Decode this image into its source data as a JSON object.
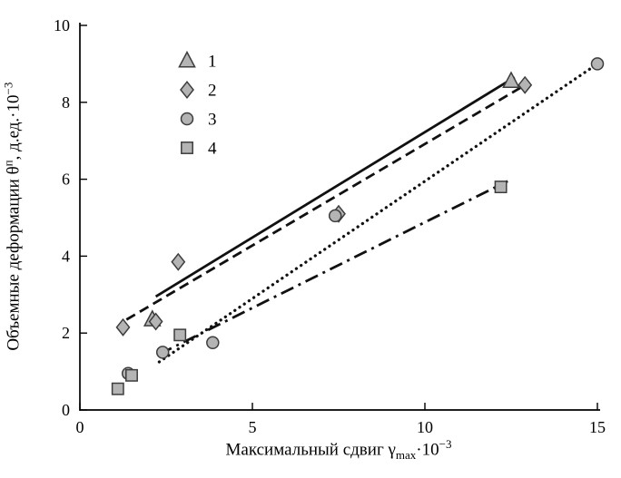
{
  "chart_data": {
    "type": "scatter",
    "title": "",
    "xlabel": {
      "pre": "Максимальный сдвиг γ",
      "sub": "max",
      "mid": "·10",
      "sup": "−3"
    },
    "ylabel": {
      "pre": "Объемные деформации θ",
      "sup1": "п",
      "mid": ", д.ед.·10",
      "sup2": "−3"
    },
    "xlim": [
      0,
      15
    ],
    "ylim": [
      0,
      10
    ],
    "xticks": [
      0,
      5,
      10,
      15
    ],
    "yticks": [
      0,
      2,
      4,
      6,
      8,
      10
    ],
    "grid": false,
    "legend_position": "upper-left-inside",
    "marker_fill": "#b4b4b4",
    "marker_stroke": "#3d3d3d",
    "line_color": "#111111",
    "legend": [
      {
        "label": "1",
        "marker": "triangle"
      },
      {
        "label": "2",
        "marker": "diamond"
      },
      {
        "label": "3",
        "marker": "circle"
      },
      {
        "label": "4",
        "marker": "square"
      }
    ],
    "series": [
      {
        "name": "1",
        "marker": "triangle",
        "line": "solid",
        "points": [
          [
            2.1,
            2.35
          ],
          [
            12.5,
            8.55
          ]
        ],
        "trend": [
          [
            2.2,
            2.95
          ],
          [
            12.6,
            8.65
          ]
        ]
      },
      {
        "name": "2",
        "marker": "diamond",
        "line": "dashed",
        "points": [
          [
            1.25,
            2.15
          ],
          [
            2.2,
            2.3
          ],
          [
            2.85,
            3.85
          ],
          [
            7.5,
            5.1
          ],
          [
            12.9,
            8.45
          ]
        ],
        "trend": [
          [
            1.35,
            2.35
          ],
          [
            13.0,
            8.5
          ]
        ]
      },
      {
        "name": "3",
        "marker": "circle",
        "line": "dotted",
        "points": [
          [
            1.4,
            0.95
          ],
          [
            2.4,
            1.5
          ],
          [
            3.85,
            1.75
          ],
          [
            7.4,
            5.05
          ],
          [
            15.0,
            9.0
          ]
        ],
        "trend": [
          [
            2.3,
            1.25
          ],
          [
            15.0,
            9.0
          ]
        ]
      },
      {
        "name": "4",
        "marker": "square",
        "line": "dashdot",
        "points": [
          [
            1.1,
            0.55
          ],
          [
            1.5,
            0.9
          ],
          [
            2.9,
            1.95
          ],
          [
            12.2,
            5.8
          ]
        ],
        "trend": [
          [
            2.3,
            1.45
          ],
          [
            12.4,
            5.95
          ]
        ]
      }
    ]
  }
}
